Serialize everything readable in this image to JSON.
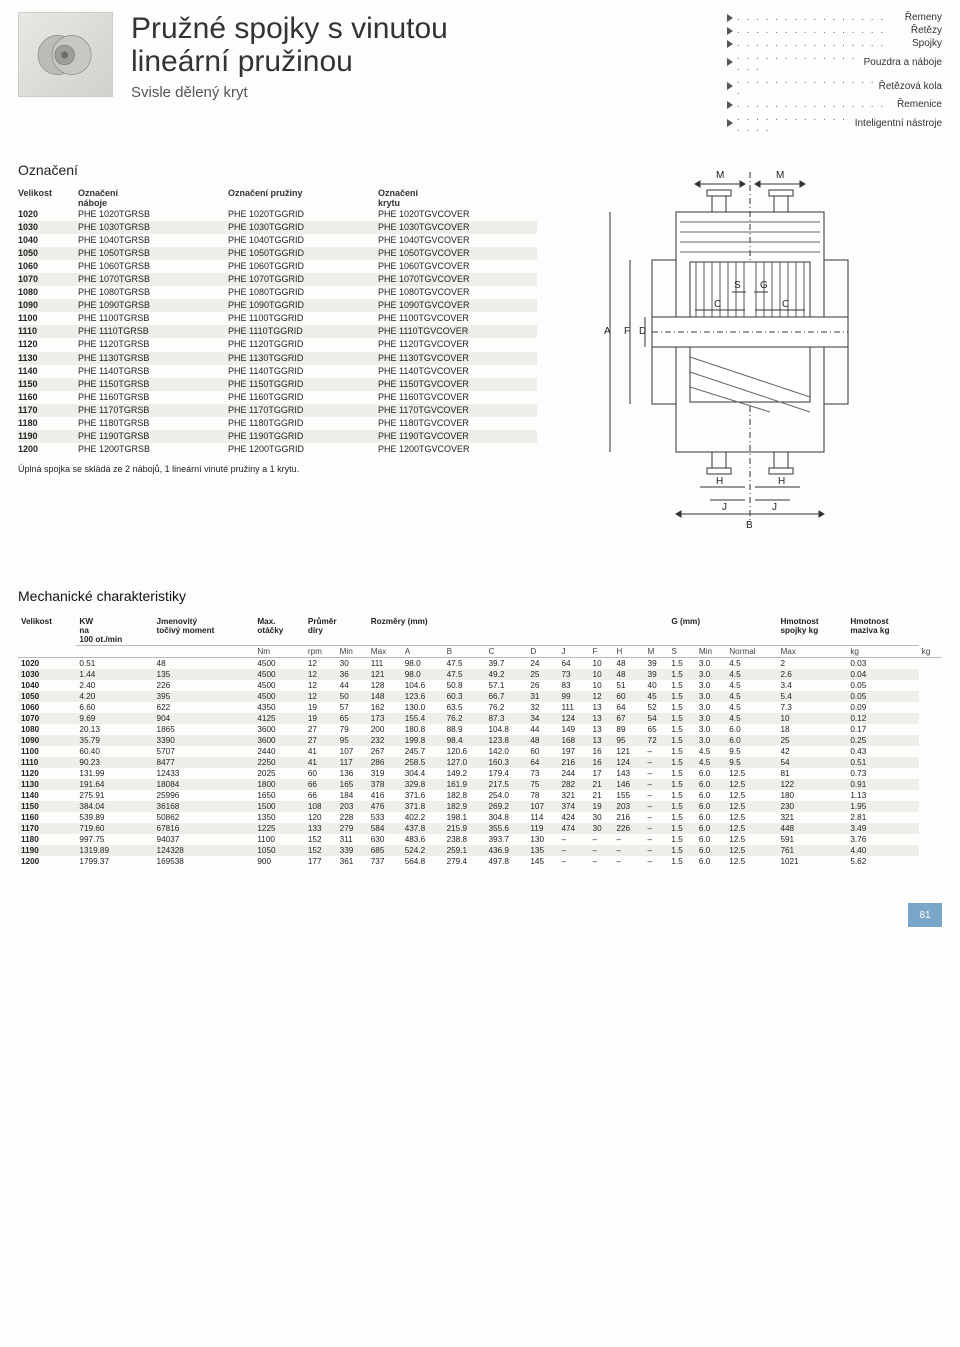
{
  "page_number": "81",
  "header": {
    "title_l1": "Pružné spojky s vinutou",
    "title_l2": "lineární pružinou",
    "subtitle": "Svisle dělený kryt"
  },
  "nav": [
    {
      "label": "Řemeny"
    },
    {
      "label": "Řetězy"
    },
    {
      "label": "Spojky"
    },
    {
      "label": "Pouzdra a náboje"
    },
    {
      "label": "Řetězová kola"
    },
    {
      "label": "Řemenice"
    },
    {
      "label": "Inteligentní nástroje"
    }
  ],
  "parts": {
    "title": "Označení",
    "headers": {
      "c1": "Velikost",
      "c2a": "Označení",
      "c2b": "náboje",
      "c3": "Označení pružiny",
      "c4a": "Označení",
      "c4b": "krytu"
    },
    "note": "Úplná spojka se skládá ze 2 nábojů, 1 lineární vinuté pružiny a 1 krytu.",
    "rows": [
      {
        "s": "1020",
        "hub": "PHE 1020TGRSB",
        "grid": "PHE 1020TGGRID",
        "cov": "PHE 1020TGVCOVER"
      },
      {
        "s": "1030",
        "hub": "PHE 1030TGRSB",
        "grid": "PHE 1030TGGRID",
        "cov": "PHE 1030TGVCOVER"
      },
      {
        "s": "1040",
        "hub": "PHE 1040TGRSB",
        "grid": "PHE 1040TGGRID",
        "cov": "PHE 1040TGVCOVER"
      },
      {
        "s": "1050",
        "hub": "PHE 1050TGRSB",
        "grid": "PHE 1050TGGRID",
        "cov": "PHE 1050TGVCOVER"
      },
      {
        "s": "1060",
        "hub": "PHE 1060TGRSB",
        "grid": "PHE 1060TGGRID",
        "cov": "PHE 1060TGVCOVER"
      },
      {
        "s": "1070",
        "hub": "PHE 1070TGRSB",
        "grid": "PHE 1070TGGRID",
        "cov": "PHE 1070TGVCOVER"
      },
      {
        "s": "1080",
        "hub": "PHE 1080TGRSB",
        "grid": "PHE 1080TGGRID",
        "cov": "PHE 1080TGVCOVER"
      },
      {
        "s": "1090",
        "hub": "PHE 1090TGRSB",
        "grid": "PHE 1090TGGRID",
        "cov": "PHE 1090TGVCOVER"
      },
      {
        "s": "1100",
        "hub": "PHE 1100TGRSB",
        "grid": "PHE 1100TGGRID",
        "cov": "PHE 1100TGVCOVER"
      },
      {
        "s": "1110",
        "hub": "PHE 1110TGRSB",
        "grid": "PHE 1110TGGRID",
        "cov": "PHE 1110TGVCOVER"
      },
      {
        "s": "1120",
        "hub": "PHE 1120TGRSB",
        "grid": "PHE 1120TGGRID",
        "cov": "PHE 1120TGVCOVER"
      },
      {
        "s": "1130",
        "hub": "PHE 1130TGRSB",
        "grid": "PHE 1130TGGRID",
        "cov": "PHE 1130TGVCOVER"
      },
      {
        "s": "1140",
        "hub": "PHE 1140TGRSB",
        "grid": "PHE 1140TGGRID",
        "cov": "PHE 1140TGVCOVER"
      },
      {
        "s": "1150",
        "hub": "PHE 1150TGRSB",
        "grid": "PHE 1150TGGRID",
        "cov": "PHE 1150TGVCOVER"
      },
      {
        "s": "1160",
        "hub": "PHE 1160TGRSB",
        "grid": "PHE 1160TGGRID",
        "cov": "PHE 1160TGVCOVER"
      },
      {
        "s": "1170",
        "hub": "PHE 1170TGRSB",
        "grid": "PHE 1170TGGRID",
        "cov": "PHE 1170TGVCOVER"
      },
      {
        "s": "1180",
        "hub": "PHE 1180TGRSB",
        "grid": "PHE 1180TGGRID",
        "cov": "PHE 1180TGVCOVER"
      },
      {
        "s": "1190",
        "hub": "PHE 1190TGRSB",
        "grid": "PHE 1190TGGRID",
        "cov": "PHE 1190TGVCOVER"
      },
      {
        "s": "1200",
        "hub": "PHE 1200TGRSB",
        "grid": "PHE 1200TGGRID",
        "cov": "PHE 1200TGVCOVER"
      }
    ]
  },
  "diagram": {
    "labels": [
      "M",
      "M",
      "A",
      "F",
      "D",
      "S",
      "G",
      "C",
      "C",
      "H",
      "H",
      "J",
      "J",
      "B"
    ],
    "stroke": "#333333",
    "stroke_width": 1,
    "hatch_color": "#666666"
  },
  "mech": {
    "title": "Mechanické charakteristiky",
    "group_headers": {
      "size": "Velikost",
      "kw_l1": "KW",
      "kw_l2": "na",
      "kw_l3": "100 ot./min",
      "torque_l1": "Jmenovitý",
      "torque_l2": "točivý moment",
      "speed_l1": "Max.",
      "speed_l2": "otáčky",
      "bore_l1": "Průměr",
      "bore_l2": "díry",
      "dims": "Rozměry (mm)",
      "g": "G (mm)",
      "wt_c_l1": "Hmotnost",
      "wt_c_l2": "spojky kg",
      "wt_g_l1": "Hmotnost",
      "wt_g_l2": "maziva kg"
    },
    "sub_headers": [
      "",
      "",
      "Nm",
      "rpm",
      "Min",
      "Max",
      "A",
      "B",
      "C",
      "D",
      "J",
      "F",
      "H",
      "M",
      "S",
      "Min",
      "Normal",
      "Max",
      "kg",
      "kg"
    ],
    "rows": [
      [
        "1020",
        "0.51",
        "48",
        "4500",
        "12",
        "30",
        "111",
        "98.0",
        "47.5",
        "39.7",
        "24",
        "64",
        "10",
        "48",
        "39",
        "1.5",
        "3.0",
        "4.5",
        "2",
        "0.03"
      ],
      [
        "1030",
        "1.44",
        "135",
        "4500",
        "12",
        "36",
        "121",
        "98.0",
        "47.5",
        "49.2",
        "25",
        "73",
        "10",
        "48",
        "39",
        "1.5",
        "3.0",
        "4.5",
        "2.6",
        "0.04"
      ],
      [
        "1040",
        "2.40",
        "226",
        "4500",
        "12",
        "44",
        "128",
        "104.6",
        "50.8",
        "57.1",
        "26",
        "83",
        "10",
        "51",
        "40",
        "1.5",
        "3.0",
        "4.5",
        "3.4",
        "0.05"
      ],
      [
        "1050",
        "4.20",
        "395",
        "4500",
        "12",
        "50",
        "148",
        "123.6",
        "60.3",
        "66.7",
        "31",
        "99",
        "12",
        "60",
        "45",
        "1.5",
        "3.0",
        "4.5",
        "5.4",
        "0.05"
      ],
      [
        "1060",
        "6.60",
        "622",
        "4350",
        "19",
        "57",
        "162",
        "130.0",
        "63.5",
        "76.2",
        "32",
        "111",
        "13",
        "64",
        "52",
        "1.5",
        "3.0",
        "4.5",
        "7.3",
        "0.09"
      ],
      [
        "1070",
        "9.69",
        "904",
        "4125",
        "19",
        "65",
        "173",
        "155.4",
        "76.2",
        "87.3",
        "34",
        "124",
        "13",
        "67",
        "54",
        "1.5",
        "3.0",
        "4.5",
        "10",
        "0.12"
      ],
      [
        "1080",
        "20.13",
        "1865",
        "3600",
        "27",
        "79",
        "200",
        "180.8",
        "88.9",
        "104.8",
        "44",
        "149",
        "13",
        "89",
        "65",
        "1.5",
        "3.0",
        "6.0",
        "18",
        "0.17"
      ],
      [
        "1090",
        "35.79",
        "3390",
        "3600",
        "27",
        "95",
        "232",
        "199.8",
        "98.4",
        "123.8",
        "48",
        "168",
        "13",
        "95",
        "72",
        "1.5",
        "3.0",
        "6.0",
        "25",
        "0.25"
      ],
      [
        "1100",
        "60.40",
        "5707",
        "2440",
        "41",
        "107",
        "267",
        "245.7",
        "120.6",
        "142.0",
        "60",
        "197",
        "16",
        "121",
        "–",
        "1.5",
        "4.5",
        "9.5",
        "42",
        "0.43"
      ],
      [
        "1110",
        "90.23",
        "8477",
        "2250",
        "41",
        "117",
        "286",
        "258.5",
        "127.0",
        "160.3",
        "64",
        "216",
        "16",
        "124",
        "–",
        "1.5",
        "4.5",
        "9.5",
        "54",
        "0.51"
      ],
      [
        "1120",
        "131.99",
        "12433",
        "2025",
        "60",
        "136",
        "319",
        "304.4",
        "149.2",
        "179.4",
        "73",
        "244",
        "17",
        "143",
        "–",
        "1.5",
        "6.0",
        "12.5",
        "81",
        "0.73"
      ],
      [
        "1130",
        "191.64",
        "18084",
        "1800",
        "66",
        "165",
        "378",
        "329.8",
        "161.9",
        "217.5",
        "75",
        "282",
        "21",
        "146",
        "–",
        "1.5",
        "6.0",
        "12.5",
        "122",
        "0.91"
      ],
      [
        "1140",
        "275.91",
        "25996",
        "1650",
        "66",
        "184",
        "416",
        "371.6",
        "182.8",
        "254.0",
        "78",
        "321",
        "21",
        "155",
        "–",
        "1.5",
        "6.0",
        "12.5",
        "180",
        "1.13"
      ],
      [
        "1150",
        "384.04",
        "36168",
        "1500",
        "108",
        "203",
        "476",
        "371.8",
        "182.9",
        "269.2",
        "107",
        "374",
        "19",
        "203",
        "–",
        "1.5",
        "6.0",
        "12.5",
        "230",
        "1.95"
      ],
      [
        "1160",
        "539.89",
        "50862",
        "1350",
        "120",
        "228",
        "533",
        "402.2",
        "198.1",
        "304.8",
        "114",
        "424",
        "30",
        "216",
        "–",
        "1.5",
        "6.0",
        "12.5",
        "321",
        "2.81"
      ],
      [
        "1170",
        "719.60",
        "67816",
        "1225",
        "133",
        "279",
        "584",
        "437.8",
        "215.9",
        "355.6",
        "119",
        "474",
        "30",
        "226",
        "–",
        "1.5",
        "6.0",
        "12.5",
        "448",
        "3.49"
      ],
      [
        "1180",
        "997.75",
        "94037",
        "1100",
        "152",
        "311",
        "630",
        "483.6",
        "238.8",
        "393.7",
        "130",
        "–",
        "–",
        "–",
        "–",
        "1.5",
        "6.0",
        "12.5",
        "591",
        "3.76"
      ],
      [
        "1190",
        "1319.89",
        "124328",
        "1050",
        "152",
        "339",
        "685",
        "524.2",
        "259.1",
        "436.9",
        "135",
        "–",
        "–",
        "–",
        "–",
        "1.5",
        "6.0",
        "12.5",
        "761",
        "4.40"
      ],
      [
        "1200",
        "1799.37",
        "169538",
        "900",
        "177",
        "361",
        "737",
        "564.8",
        "279.4",
        "497.8",
        "145",
        "–",
        "–",
        "–",
        "–",
        "1.5",
        "6.0",
        "12.5",
        "1021",
        "5.62"
      ]
    ]
  }
}
